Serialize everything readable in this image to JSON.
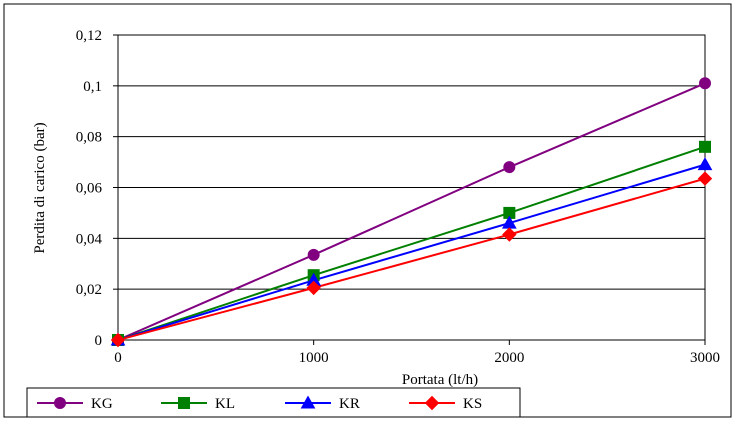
{
  "chart_data": {
    "type": "line",
    "x": [
      0,
      1000,
      2000,
      3000
    ],
    "x_tick_labels": [
      "0",
      "1000",
      "2000",
      "3000"
    ],
    "xlim": [
      0,
      3000
    ],
    "ylim": [
      0,
      0.12
    ],
    "y_ticks": [
      0,
      0.02,
      0.04,
      0.06,
      0.08,
      0.1,
      0.12
    ],
    "y_tick_labels": [
      "0",
      "0,02",
      "0,04",
      "0,06",
      "0,08",
      "0,1",
      "0,12"
    ],
    "xlabel": "Portata (lt/h)",
    "ylabel": "Perdita di carico (bar)",
    "grid": "horizontal",
    "legend_position": "bottom",
    "series": [
      {
        "name": "KG",
        "color": "#800080",
        "marker": "circle",
        "values": [
          0,
          0.0335,
          0.068,
          0.101
        ]
      },
      {
        "name": "KL",
        "color": "#008000",
        "marker": "square",
        "values": [
          0,
          0.0255,
          0.05,
          0.076
        ]
      },
      {
        "name": "KR",
        "color": "#0000ff",
        "marker": "triangle",
        "values": [
          0,
          0.0235,
          0.046,
          0.069
        ]
      },
      {
        "name": "KS",
        "color": "#ff0000",
        "marker": "diamond",
        "values": [
          0,
          0.0205,
          0.0415,
          0.0635
        ]
      }
    ]
  }
}
